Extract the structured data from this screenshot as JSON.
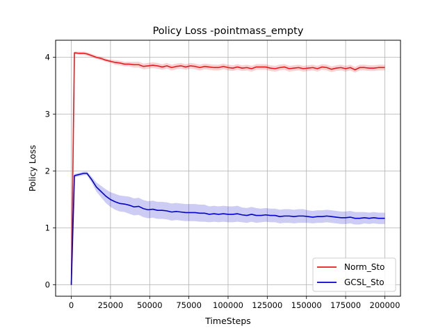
{
  "chart_data": {
    "type": "line",
    "title": "Policy Loss -pointmass_empty",
    "xlabel": "TimeSteps",
    "ylabel": "Policy Loss",
    "xlim": [
      -10000,
      210000
    ],
    "ylim": [
      -0.2,
      4.3
    ],
    "xticks": [
      0,
      25000,
      50000,
      75000,
      100000,
      125000,
      150000,
      175000,
      200000
    ],
    "yticks": [
      0,
      1,
      2,
      3,
      4
    ],
    "grid": true,
    "legend_position": "lower-right",
    "series": [
      {
        "name": "Norm_Sto",
        "color": "#e41a1c",
        "x": [
          0,
          2000,
          5000,
          8000,
          10000,
          13000,
          16000,
          19000,
          22000,
          25000,
          28000,
          31000,
          34000,
          37000,
          40000,
          43000,
          46000,
          49000,
          52000,
          55000,
          58000,
          61000,
          64000,
          67000,
          70000,
          73000,
          76000,
          79000,
          82000,
          85000,
          88000,
          91000,
          94000,
          97000,
          100000,
          103000,
          106000,
          109000,
          112000,
          115000,
          118000,
          121000,
          124000,
          127000,
          130000,
          133000,
          136000,
          139000,
          142000,
          145000,
          148000,
          151000,
          154000,
          157000,
          160000,
          163000,
          166000,
          169000,
          172000,
          175000,
          178000,
          181000,
          184000,
          187000,
          190000,
          193000,
          196000,
          200000
        ],
        "y": [
          0.0,
          4.08,
          4.07,
          4.07,
          4.06,
          4.03,
          4.0,
          3.98,
          3.95,
          3.93,
          3.91,
          3.9,
          3.88,
          3.88,
          3.87,
          3.87,
          3.84,
          3.85,
          3.86,
          3.85,
          3.83,
          3.85,
          3.82,
          3.84,
          3.85,
          3.83,
          3.85,
          3.84,
          3.82,
          3.84,
          3.83,
          3.82,
          3.82,
          3.84,
          3.82,
          3.81,
          3.83,
          3.81,
          3.82,
          3.8,
          3.83,
          3.83,
          3.83,
          3.81,
          3.8,
          3.82,
          3.83,
          3.8,
          3.81,
          3.82,
          3.8,
          3.81,
          3.82,
          3.8,
          3.83,
          3.82,
          3.79,
          3.81,
          3.82,
          3.8,
          3.82,
          3.78,
          3.82,
          3.82,
          3.81,
          3.81,
          3.82,
          3.82
        ],
        "band": [
          0.0,
          0.02,
          0.03,
          0.03,
          0.03,
          0.03,
          0.03,
          0.03,
          0.03,
          0.03,
          0.04,
          0.04,
          0.04,
          0.04,
          0.05,
          0.05,
          0.05,
          0.05,
          0.05,
          0.05,
          0.05,
          0.05,
          0.05,
          0.05,
          0.05,
          0.05,
          0.05,
          0.05,
          0.05,
          0.05,
          0.05,
          0.05,
          0.05,
          0.05,
          0.05,
          0.05,
          0.05,
          0.05,
          0.05,
          0.05,
          0.05,
          0.05,
          0.05,
          0.05,
          0.05,
          0.05,
          0.05,
          0.05,
          0.05,
          0.05,
          0.05,
          0.05,
          0.05,
          0.05,
          0.05,
          0.05,
          0.05,
          0.05,
          0.05,
          0.05,
          0.05,
          0.05,
          0.05,
          0.05,
          0.05,
          0.05,
          0.05,
          0.05
        ]
      },
      {
        "name": "GCSL_Sto",
        "color": "#0000cc",
        "x": [
          0,
          2000,
          5000,
          8000,
          10000,
          13000,
          16000,
          19000,
          22000,
          25000,
          28000,
          31000,
          34000,
          37000,
          40000,
          43000,
          46000,
          49000,
          52000,
          55000,
          58000,
          61000,
          64000,
          67000,
          70000,
          73000,
          76000,
          79000,
          82000,
          85000,
          88000,
          91000,
          94000,
          97000,
          100000,
          103000,
          106000,
          109000,
          112000,
          115000,
          118000,
          121000,
          124000,
          127000,
          130000,
          133000,
          136000,
          139000,
          142000,
          145000,
          148000,
          151000,
          154000,
          157000,
          160000,
          163000,
          166000,
          169000,
          172000,
          175000,
          178000,
          181000,
          184000,
          187000,
          190000,
          193000,
          196000,
          200000
        ],
        "y": [
          0.0,
          1.92,
          1.94,
          1.96,
          1.96,
          1.85,
          1.72,
          1.64,
          1.56,
          1.5,
          1.46,
          1.43,
          1.42,
          1.4,
          1.37,
          1.38,
          1.34,
          1.32,
          1.33,
          1.31,
          1.31,
          1.3,
          1.28,
          1.29,
          1.28,
          1.27,
          1.27,
          1.27,
          1.26,
          1.26,
          1.24,
          1.25,
          1.24,
          1.25,
          1.24,
          1.24,
          1.25,
          1.23,
          1.22,
          1.24,
          1.22,
          1.22,
          1.23,
          1.22,
          1.22,
          1.2,
          1.21,
          1.21,
          1.2,
          1.21,
          1.21,
          1.2,
          1.19,
          1.2,
          1.2,
          1.21,
          1.2,
          1.19,
          1.18,
          1.18,
          1.19,
          1.17,
          1.17,
          1.18,
          1.17,
          1.18,
          1.17,
          1.17
        ],
        "band": [
          0.0,
          0.03,
          0.03,
          0.03,
          0.03,
          0.05,
          0.08,
          0.1,
          0.12,
          0.13,
          0.14,
          0.14,
          0.14,
          0.15,
          0.15,
          0.15,
          0.15,
          0.15,
          0.15,
          0.15,
          0.15,
          0.15,
          0.15,
          0.15,
          0.15,
          0.15,
          0.15,
          0.15,
          0.15,
          0.15,
          0.14,
          0.14,
          0.14,
          0.14,
          0.14,
          0.14,
          0.14,
          0.13,
          0.13,
          0.13,
          0.13,
          0.12,
          0.12,
          0.12,
          0.12,
          0.12,
          0.12,
          0.12,
          0.12,
          0.12,
          0.12,
          0.11,
          0.11,
          0.11,
          0.11,
          0.11,
          0.11,
          0.11,
          0.11,
          0.11,
          0.11,
          0.11,
          0.11,
          0.1,
          0.1,
          0.1,
          0.1,
          0.1
        ]
      }
    ]
  }
}
